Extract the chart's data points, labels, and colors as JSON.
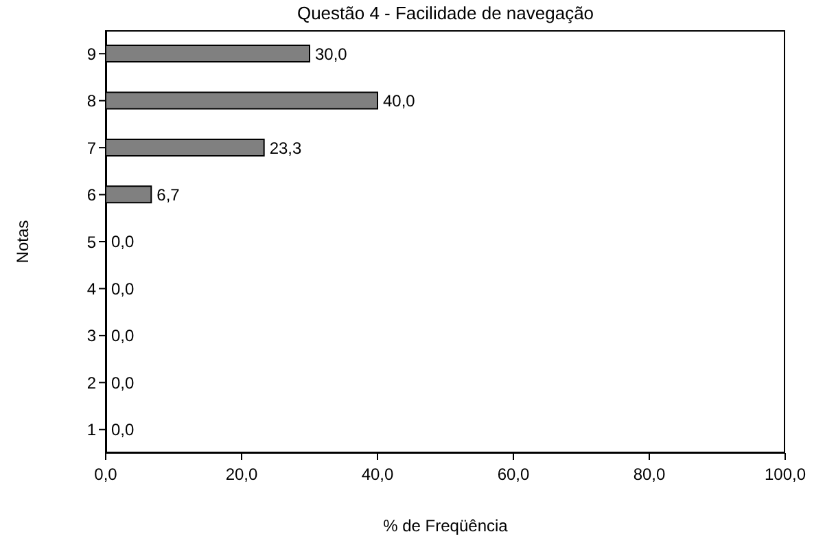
{
  "chart_data": {
    "type": "bar",
    "orientation": "horizontal",
    "title": "Questão 4 - Facilidade de navegação",
    "xlabel": "% de Freqüência",
    "ylabel": "Notas",
    "categories": [
      "9",
      "8",
      "7",
      "6",
      "5",
      "4",
      "3",
      "2",
      "1"
    ],
    "values": [
      30.0,
      40.0,
      23.3,
      6.7,
      0,
      0,
      0,
      0,
      0
    ],
    "value_labels": [
      "30,0",
      "40,0",
      "23,3",
      "6,7",
      "0,0",
      "0,0",
      "0,0",
      "0,0",
      "0,0"
    ],
    "color": "#808080",
    "xlim": [
      0,
      100
    ],
    "xticks": [
      {
        "value": 0,
        "label": "0,0"
      },
      {
        "value": 20,
        "label": "20,0"
      },
      {
        "value": 40,
        "label": "40,0"
      },
      {
        "value": 60,
        "label": "60,0"
      },
      {
        "value": 80,
        "label": "80,0"
      },
      {
        "value": 100,
        "label": "100,0"
      }
    ],
    "grid": false,
    "legend": false
  }
}
